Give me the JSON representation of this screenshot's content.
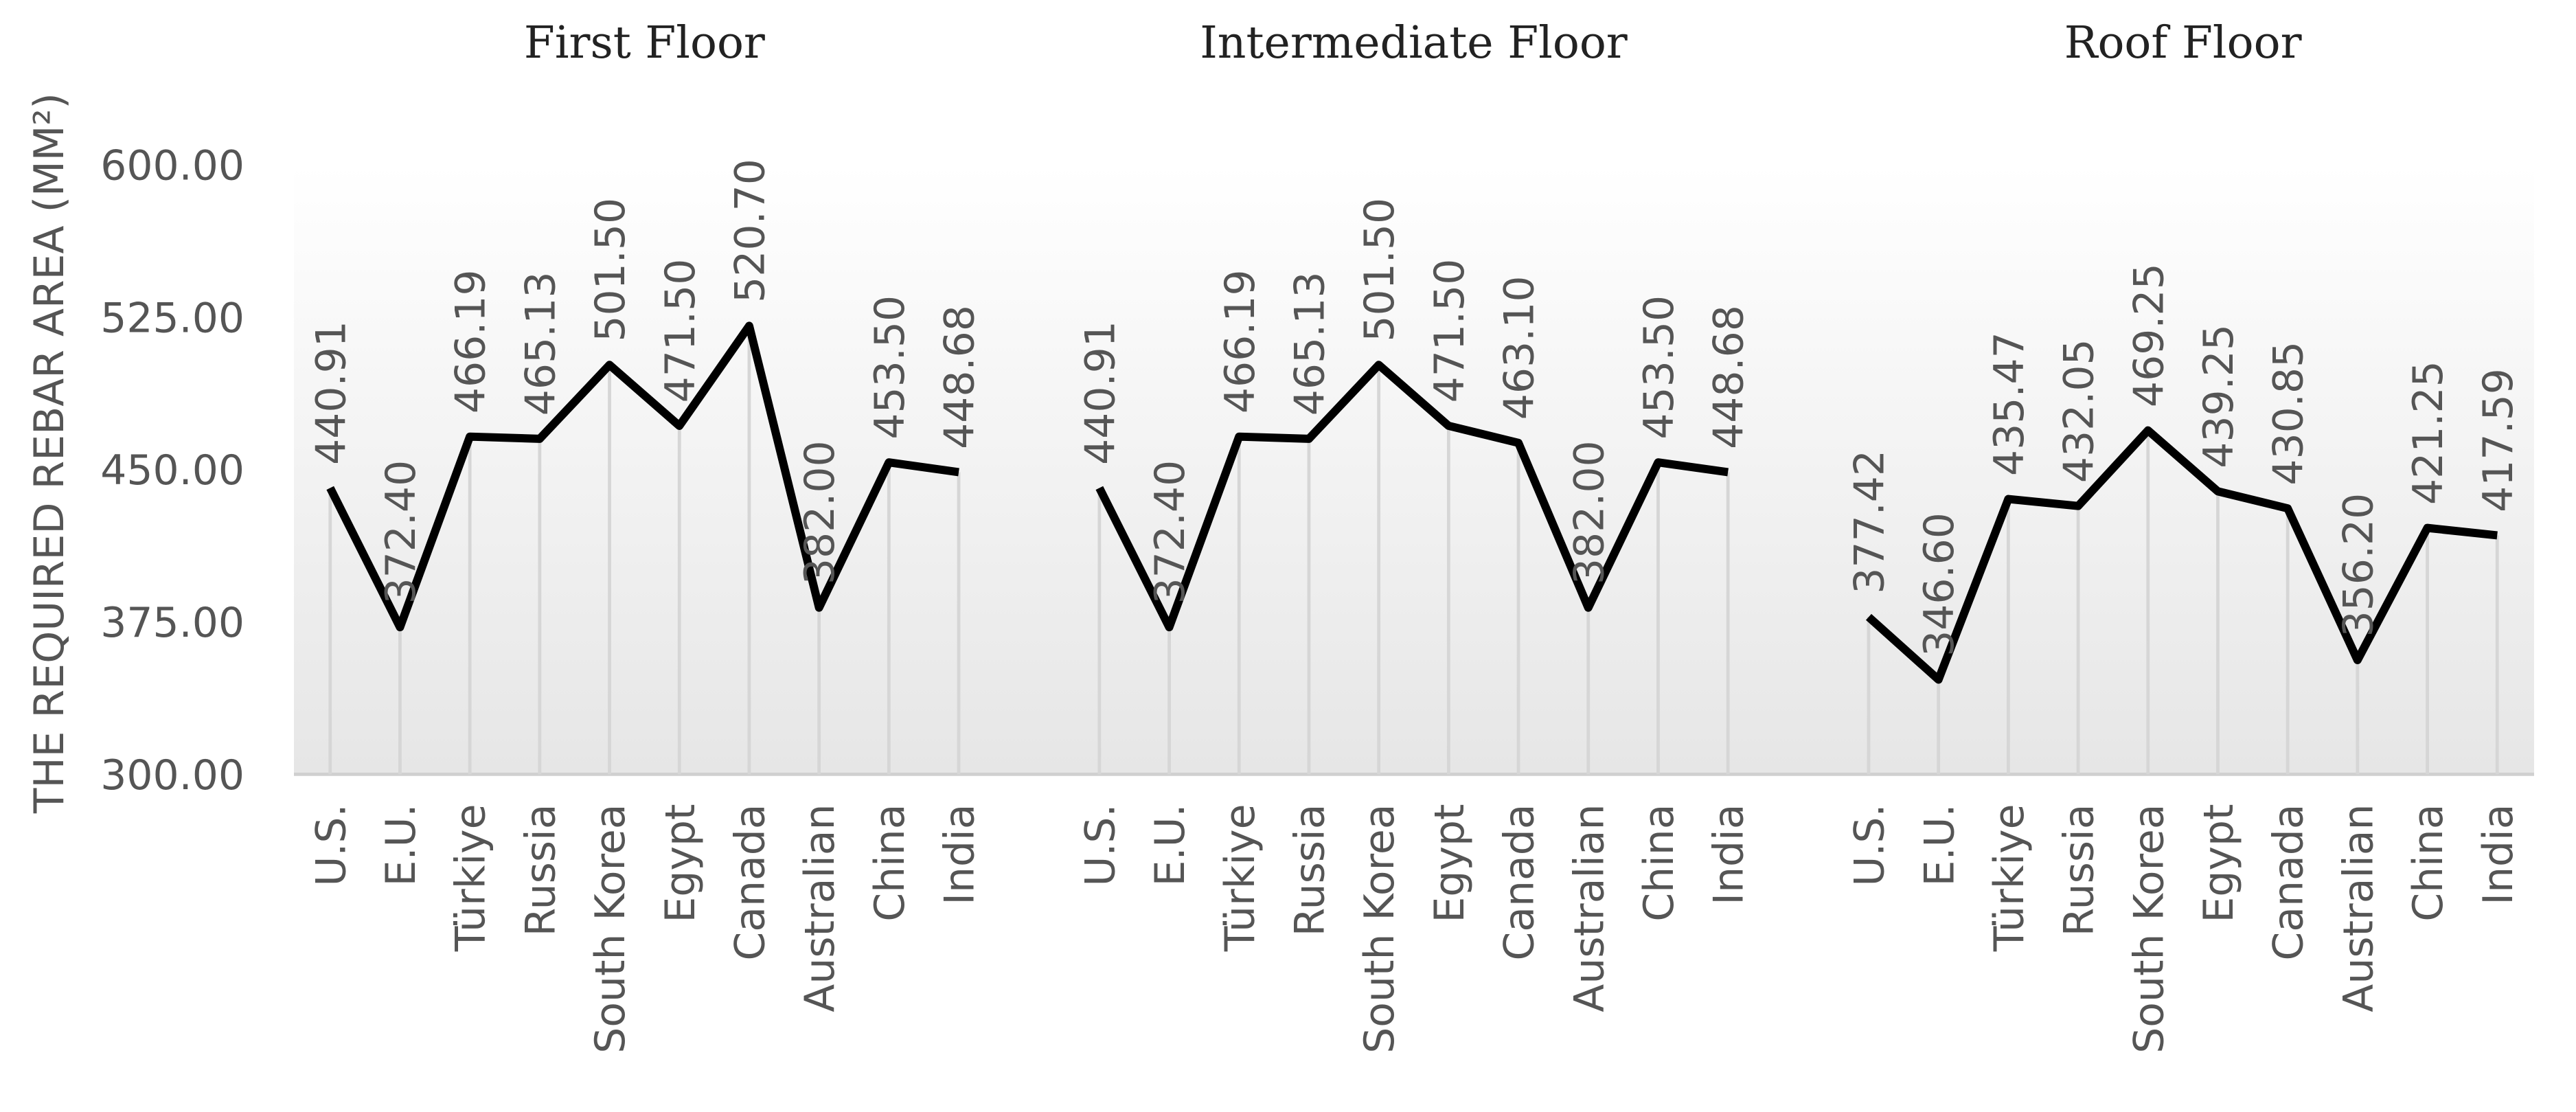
{
  "chart_data": {
    "type": "line",
    "color": "#000000",
    "ylabel": "THE REQUIRED REBAR AREA (MM²)",
    "ylim": [
      300,
      600
    ],
    "yticks": [
      {
        "value": 300,
        "label": "300.00"
      },
      {
        "value": 375,
        "label": "375.00"
      },
      {
        "value": 450,
        "label": "450.00"
      },
      {
        "value": 525,
        "label": "525.00"
      },
      {
        "value": 600,
        "label": "600.00"
      }
    ],
    "panels": [
      {
        "title": "First Floor",
        "categories": [
          "U.S.",
          "E.U.",
          "Türkiye",
          "Russia",
          "South Korea",
          "Egypt",
          "Canada",
          "Australian",
          "China",
          "India"
        ],
        "values": [
          440.91,
          372.4,
          466.19,
          465.13,
          501.5,
          471.5,
          520.7,
          382,
          453.5,
          448.68
        ],
        "value_labels": [
          "440.91",
          "372.40",
          "466.19",
          "465.13",
          "501.50",
          "471.50",
          "520.70",
          "382.00",
          "453.50",
          "448.68"
        ]
      },
      {
        "title": "Intermediate Floor",
        "categories": [
          "U.S.",
          "E.U.",
          "Türkiye",
          "Russia",
          "South Korea",
          "Egypt",
          "Canada",
          "Australian",
          "China",
          "India"
        ],
        "values": [
          440.91,
          372.4,
          466.19,
          465.13,
          501.5,
          471.5,
          463.1,
          382,
          453.5,
          448.68
        ],
        "value_labels": [
          "440.91",
          "372.40",
          "466.19",
          "465.13",
          "501.50",
          "471.50",
          "463.10",
          "382.00",
          "453.50",
          "448.68"
        ]
      },
      {
        "title": "Roof Floor",
        "categories": [
          "U.S.",
          "E.U.",
          "Türkiye",
          "Russia",
          "South Korea",
          "Egypt",
          "Canada",
          "Australian",
          "China",
          "India"
        ],
        "values": [
          377.42,
          346.6,
          435.47,
          432.05,
          469.25,
          439.25,
          430.85,
          356.2,
          421.25,
          417.59
        ],
        "value_labels": [
          "377.42",
          "346.60",
          "435.47",
          "432.05",
          "469.25",
          "439.25",
          "430.85",
          "356.20",
          "421.25",
          "417.59"
        ]
      }
    ]
  }
}
